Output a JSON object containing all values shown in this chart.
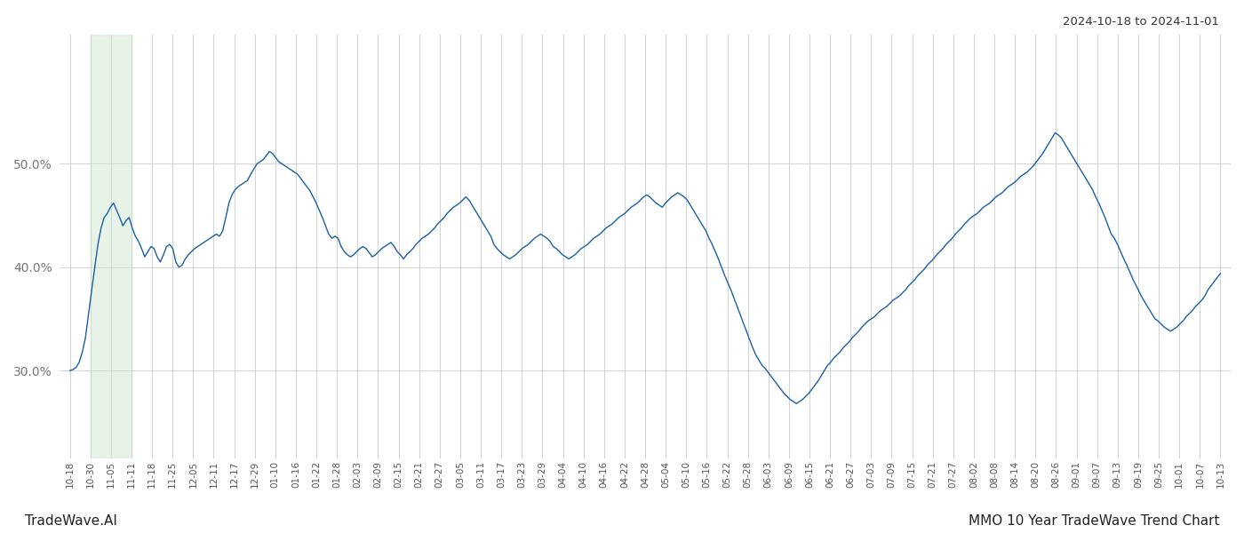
{
  "title_top_right": "2024-10-18 to 2024-11-01",
  "bottom_left": "TradeWave.AI",
  "bottom_right": "MMO 10 Year TradeWave Trend Chart",
  "line_color": "#1a5fa8",
  "highlight_color": "#c8e6c9",
  "highlight_alpha": 0.45,
  "background_color": "#ffffff",
  "grid_color": "#cccccc",
  "yticks": [
    0.3,
    0.4,
    0.5
  ],
  "ylim": [
    0.215,
    0.625
  ],
  "x_labels": [
    "10-18",
    "10-30",
    "11-05",
    "11-11",
    "11-18",
    "11-25",
    "12-05",
    "12-11",
    "12-17",
    "12-29",
    "01-10",
    "01-16",
    "01-22",
    "01-28",
    "02-03",
    "02-09",
    "02-15",
    "02-21",
    "02-27",
    "03-05",
    "03-11",
    "03-17",
    "03-23",
    "03-29",
    "04-04",
    "04-10",
    "04-16",
    "04-22",
    "04-28",
    "05-04",
    "05-10",
    "05-16",
    "05-22",
    "05-28",
    "06-03",
    "06-09",
    "06-15",
    "06-21",
    "06-27",
    "07-03",
    "07-09",
    "07-15",
    "07-21",
    "07-27",
    "08-02",
    "08-08",
    "08-14",
    "08-20",
    "08-26",
    "09-01",
    "09-07",
    "09-13",
    "09-19",
    "09-25",
    "10-01",
    "10-07",
    "10-13"
  ],
  "highlight_xstart": 1,
  "highlight_xend": 3,
  "y_values": [
    0.3,
    0.301,
    0.303,
    0.308,
    0.318,
    0.332,
    0.355,
    0.378,
    0.4,
    0.422,
    0.438,
    0.448,
    0.452,
    0.458,
    0.462,
    0.455,
    0.448,
    0.44,
    0.445,
    0.448,
    0.438,
    0.43,
    0.425,
    0.418,
    0.41,
    0.415,
    0.42,
    0.418,
    0.41,
    0.405,
    0.412,
    0.42,
    0.422,
    0.418,
    0.405,
    0.4,
    0.402,
    0.408,
    0.412,
    0.415,
    0.418,
    0.42,
    0.422,
    0.424,
    0.426,
    0.428,
    0.43,
    0.432,
    0.43,
    0.435,
    0.448,
    0.462,
    0.47,
    0.475,
    0.478,
    0.48,
    0.482,
    0.484,
    0.49,
    0.495,
    0.5,
    0.502,
    0.504,
    0.508,
    0.512,
    0.51,
    0.506,
    0.502,
    0.5,
    0.498,
    0.496,
    0.494,
    0.492,
    0.49,
    0.486,
    0.482,
    0.478,
    0.474,
    0.468,
    0.462,
    0.455,
    0.448,
    0.44,
    0.432,
    0.428,
    0.43,
    0.428,
    0.42,
    0.415,
    0.412,
    0.41,
    0.412,
    0.415,
    0.418,
    0.42,
    0.418,
    0.414,
    0.41,
    0.412,
    0.415,
    0.418,
    0.42,
    0.422,
    0.424,
    0.42,
    0.415,
    0.412,
    0.408,
    0.412,
    0.415,
    0.418,
    0.422,
    0.425,
    0.428,
    0.43,
    0.432,
    0.435,
    0.438,
    0.442,
    0.445,
    0.448,
    0.452,
    0.455,
    0.458,
    0.46,
    0.462,
    0.465,
    0.468,
    0.465,
    0.46,
    0.455,
    0.45,
    0.445,
    0.44,
    0.435,
    0.43,
    0.422,
    0.418,
    0.415,
    0.412,
    0.41,
    0.408,
    0.41,
    0.412,
    0.415,
    0.418,
    0.42,
    0.422,
    0.425,
    0.428,
    0.43,
    0.432,
    0.43,
    0.428,
    0.425,
    0.42,
    0.418,
    0.415,
    0.412,
    0.41,
    0.408,
    0.41,
    0.412,
    0.415,
    0.418,
    0.42,
    0.422,
    0.425,
    0.428,
    0.43,
    0.432,
    0.435,
    0.438,
    0.44,
    0.442,
    0.445,
    0.448,
    0.45,
    0.452,
    0.455,
    0.458,
    0.46,
    0.462,
    0.465,
    0.468,
    0.47,
    0.468,
    0.465,
    0.462,
    0.46,
    0.458,
    0.462,
    0.465,
    0.468,
    0.47,
    0.472,
    0.47,
    0.468,
    0.465,
    0.46,
    0.455,
    0.45,
    0.445,
    0.44,
    0.435,
    0.428,
    0.422,
    0.415,
    0.408,
    0.4,
    0.392,
    0.385,
    0.378,
    0.37,
    0.362,
    0.354,
    0.346,
    0.338,
    0.33,
    0.322,
    0.315,
    0.31,
    0.305,
    0.302,
    0.298,
    0.294,
    0.29,
    0.286,
    0.282,
    0.278,
    0.275,
    0.272,
    0.27,
    0.268,
    0.27,
    0.272,
    0.275,
    0.278,
    0.282,
    0.286,
    0.29,
    0.295,
    0.3,
    0.305,
    0.308,
    0.312,
    0.315,
    0.318,
    0.322,
    0.325,
    0.328,
    0.332,
    0.335,
    0.338,
    0.342,
    0.345,
    0.348,
    0.35,
    0.352,
    0.355,
    0.358,
    0.36,
    0.362,
    0.365,
    0.368,
    0.37,
    0.372,
    0.375,
    0.378,
    0.382,
    0.385,
    0.388,
    0.392,
    0.395,
    0.398,
    0.402,
    0.405,
    0.408,
    0.412,
    0.415,
    0.418,
    0.422,
    0.425,
    0.428,
    0.432,
    0.435,
    0.438,
    0.442,
    0.445,
    0.448,
    0.45,
    0.452,
    0.455,
    0.458,
    0.46,
    0.462,
    0.465,
    0.468,
    0.47,
    0.472,
    0.475,
    0.478,
    0.48,
    0.482,
    0.485,
    0.488,
    0.49,
    0.492,
    0.495,
    0.498,
    0.502,
    0.506,
    0.51,
    0.515,
    0.52,
    0.525,
    0.53,
    0.528,
    0.525,
    0.52,
    0.515,
    0.51,
    0.505,
    0.5,
    0.495,
    0.49,
    0.485,
    0.48,
    0.475,
    0.468,
    0.462,
    0.455,
    0.448,
    0.44,
    0.432,
    0.428,
    0.422,
    0.415,
    0.408,
    0.402,
    0.395,
    0.388,
    0.382,
    0.376,
    0.37,
    0.365,
    0.36,
    0.355,
    0.35,
    0.348,
    0.345,
    0.342,
    0.34,
    0.338,
    0.34,
    0.342,
    0.345,
    0.348,
    0.352,
    0.355,
    0.358,
    0.362,
    0.365,
    0.368,
    0.372,
    0.378,
    0.382,
    0.386,
    0.39,
    0.394
  ]
}
